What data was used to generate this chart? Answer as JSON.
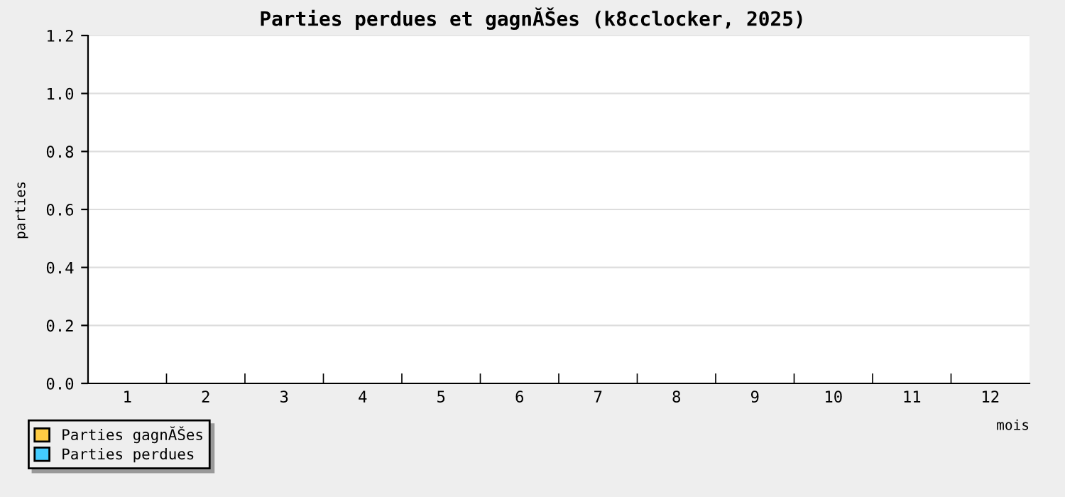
{
  "chart_data": {
    "type": "bar",
    "title": "Parties perdues et gagnĂŠes (k8cclocker, 2025)",
    "xlabel": "mois",
    "ylabel": "parties",
    "categories": [
      "1",
      "2",
      "3",
      "4",
      "5",
      "6",
      "7",
      "8",
      "9",
      "10",
      "11",
      "12"
    ],
    "series": [
      {
        "name": "Parties gagnĂŠes",
        "color": "#ffcc44",
        "values": [
          0,
          0,
          0,
          0,
          0,
          0,
          0,
          0,
          0,
          0,
          0,
          0
        ]
      },
      {
        "name": "Parties perdues",
        "color": "#44ccff",
        "values": [
          0,
          0,
          0,
          0,
          0,
          0,
          0,
          0,
          0,
          0,
          0,
          0
        ]
      }
    ],
    "ylim": [
      0,
      1.2
    ],
    "yticks": [
      {
        "value": 0,
        "label": "0.0"
      },
      {
        "value": 0.2,
        "label": "0.2"
      },
      {
        "value": 0.4,
        "label": "0.4"
      },
      {
        "value": 0.6,
        "label": "0.6"
      },
      {
        "value": 0.8,
        "label": "0.8"
      },
      {
        "value": 1.0,
        "label": "1.0"
      },
      {
        "value": 1.2,
        "label": "1.2"
      }
    ],
    "grid": "y",
    "legend": "bottom left"
  }
}
